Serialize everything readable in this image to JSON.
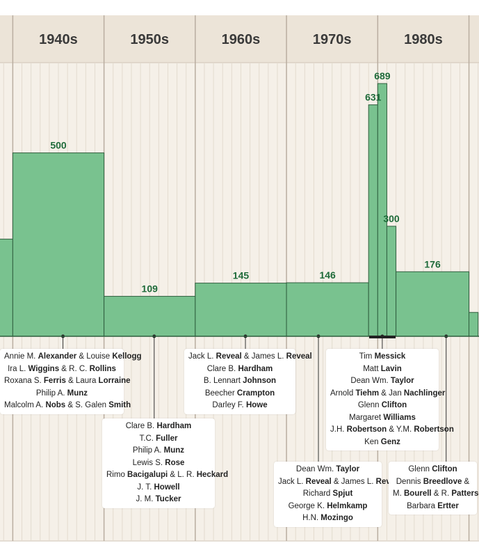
{
  "chart_data": {
    "type": "bar",
    "decades": [
      "1940s",
      "1950s",
      "1960s",
      "1970s",
      "1980s"
    ],
    "bars": [
      {
        "x_start": 1930,
        "x_end": 1940,
        "value": 265,
        "label": ""
      },
      {
        "x_start": 1940,
        "x_end": 1950,
        "value": 500,
        "label": "500"
      },
      {
        "x_start": 1950,
        "x_end": 1960,
        "value": 109,
        "label": "109"
      },
      {
        "x_start": 1960,
        "x_end": 1970,
        "value": 145,
        "label": "145"
      },
      {
        "x_start": 1970,
        "x_end": 1979,
        "value": 146,
        "label": "146"
      },
      {
        "x_start": 1979,
        "x_end": 1980,
        "value": 631,
        "label": "631"
      },
      {
        "x_start": 1980,
        "x_end": 1981,
        "value": 689,
        "label": "689"
      },
      {
        "x_start": 1981,
        "x_end": 1982,
        "value": 300,
        "label": "300"
      },
      {
        "x_start": 1982,
        "x_end": 1990,
        "value": 176,
        "label": "176"
      },
      {
        "x_start": 1990,
        "x_end": 1991,
        "value": 65,
        "label": ""
      }
    ],
    "xlim": [
      1938.6,
      1991.1
    ],
    "ylim": [
      0,
      689
    ]
  },
  "contributors": [
    {
      "year": 1945,
      "lines": [
        [
          {
            "t": "Annie M. "
          },
          {
            "t": "Alexander",
            "b": true
          },
          {
            "t": " & Louise "
          },
          {
            "t": "Kellogg",
            "b": true
          }
        ],
        [
          {
            "t": "Ira L. "
          },
          {
            "t": "Wiggins",
            "b": true
          },
          {
            "t": " & R. C. "
          },
          {
            "t": "Rollins",
            "b": true
          }
        ],
        [
          {
            "t": "Roxana S. "
          },
          {
            "t": "Ferris",
            "b": true
          },
          {
            "t": " & Laura "
          },
          {
            "t": "Lorraine",
            "b": true
          }
        ],
        [
          {
            "t": "Philip A. "
          },
          {
            "t": "Munz",
            "b": true
          }
        ],
        [
          {
            "t": "Malcolm A. "
          },
          {
            "t": "Nobs",
            "b": true
          },
          {
            "t": " & S. Galen "
          },
          {
            "t": "Smith",
            "b": true
          }
        ]
      ]
    },
    {
      "year": 1955,
      "lines": [
        [
          {
            "t": "Clare B. "
          },
          {
            "t": "Hardham",
            "b": true
          }
        ],
        [
          {
            "t": "T.C. "
          },
          {
            "t": "Fuller",
            "b": true
          }
        ],
        [
          {
            "t": "Philip A. "
          },
          {
            "t": "Munz",
            "b": true
          }
        ],
        [
          {
            "t": "Lewis S. "
          },
          {
            "t": "Rose",
            "b": true
          }
        ],
        [
          {
            "t": "Rimo "
          },
          {
            "t": "Bacigalupi",
            "b": true
          },
          {
            "t": " & L. R. "
          },
          {
            "t": "Heckard",
            "b": true
          }
        ],
        [
          {
            "t": "J. T. "
          },
          {
            "t": "Howell",
            "b": true
          }
        ],
        [
          {
            "t": "J. M. "
          },
          {
            "t": "Tucker",
            "b": true
          }
        ]
      ]
    },
    {
      "year": 1965,
      "lines": [
        [
          {
            "t": "Jack L. "
          },
          {
            "t": "Reveal",
            "b": true
          },
          {
            "t": " & James L. "
          },
          {
            "t": "Reveal",
            "b": true
          }
        ],
        [
          {
            "t": "Clare B. "
          },
          {
            "t": "Hardham",
            "b": true
          }
        ],
        [
          {
            "t": "B. Lennart "
          },
          {
            "t": "Johnson",
            "b": true
          }
        ],
        [
          {
            "t": "Beecher "
          },
          {
            "t": "Crampton",
            "b": true
          }
        ],
        [
          {
            "t": "Darley F. "
          },
          {
            "t": "Howe",
            "b": true
          }
        ]
      ]
    },
    {
      "year": 1973,
      "lines": [
        [
          {
            "t": "Dean Wm. "
          },
          {
            "t": "Taylor",
            "b": true
          }
        ],
        [
          {
            "t": "Jack L. "
          },
          {
            "t": "Reveal",
            "b": true
          },
          {
            "t": " & James L. "
          },
          {
            "t": "Reveal",
            "b": true
          }
        ],
        [
          {
            "t": "Richard "
          },
          {
            "t": "Spjut",
            "b": true
          }
        ],
        [
          {
            "t": "George K. "
          },
          {
            "t": "Helmkamp",
            "b": true
          }
        ],
        [
          {
            "t": "H.N. "
          },
          {
            "t": "Mozingo",
            "b": true
          }
        ]
      ]
    },
    {
      "year": 1980,
      "lines": [
        [
          {
            "t": "Tim "
          },
          {
            "t": "Messick",
            "b": true
          }
        ],
        [
          {
            "t": "Matt "
          },
          {
            "t": "Lavin",
            "b": true
          }
        ],
        [
          {
            "t": "Dean Wm. "
          },
          {
            "t": "Taylor",
            "b": true
          }
        ],
        [
          {
            "t": "Arnold "
          },
          {
            "t": "Tiehm",
            "b": true
          },
          {
            "t": " & Jan "
          },
          {
            "t": "Nachlinger",
            "b": true
          }
        ],
        [
          {
            "t": "Glenn "
          },
          {
            "t": "Clifton",
            "b": true
          }
        ],
        [
          {
            "t": "Margaret "
          },
          {
            "t": "Williams",
            "b": true
          }
        ],
        [
          {
            "t": "J.H. "
          },
          {
            "t": "Robertson",
            "b": true
          },
          {
            "t": " & Y.M. "
          },
          {
            "t": "Robertson",
            "b": true
          }
        ],
        [
          {
            "t": "Ken "
          },
          {
            "t": "Genz",
            "b": true
          }
        ]
      ]
    },
    {
      "year": 1987,
      "lines": [
        [
          {
            "t": "Glenn "
          },
          {
            "t": "Clifton",
            "b": true
          }
        ],
        [
          {
            "t": "Dennis "
          },
          {
            "t": "Breedlove",
            "b": true
          },
          {
            "t": " &"
          }
        ],
        [
          {
            "t": "M. "
          },
          {
            "t": "Bourell",
            "b": true
          },
          {
            "t": " & R. "
          },
          {
            "t": "Patterson",
            "b": true
          }
        ],
        [
          {
            "t": "Barbara "
          },
          {
            "t": "Ertter",
            "b": true
          }
        ]
      ]
    }
  ],
  "colors": {
    "bar_fill": "#79c28f",
    "bar_stroke": "#2f5e3e",
    "label": "#1f6b3a",
    "header_bg": "#ece4d8",
    "panel_bg": "#f5f0e8",
    "decade_line": "#b9ada0",
    "year_line": "#e3dbcf"
  }
}
